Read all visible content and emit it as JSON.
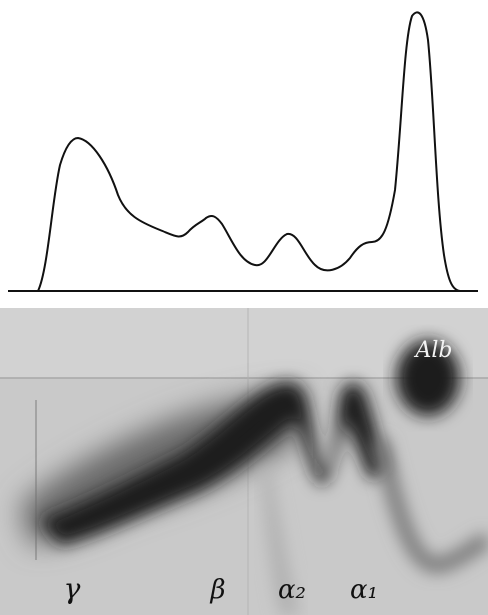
{
  "albumin": {
    "label": "Alb"
  },
  "bands": [
    {
      "label": "γ"
    },
    {
      "label": "β"
    },
    {
      "label": "α₂"
    },
    {
      "label": "α₁"
    }
  ]
}
